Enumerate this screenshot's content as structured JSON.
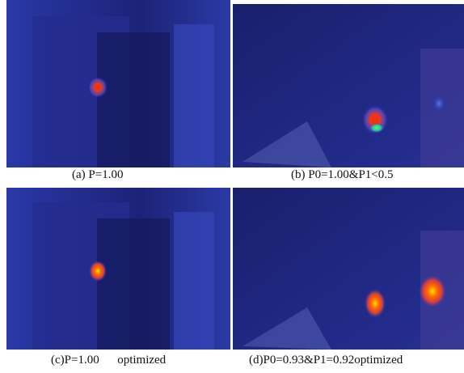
{
  "figure": {
    "panels": [
      {
        "caption": "(a) P=1.00"
      },
      {
        "caption": "(b) P0=1.00&P1<0.5"
      },
      {
        "caption": "(c)P=1.00      optimized"
      },
      {
        "caption": "(d)P0=0.93&P1=0.92optimized"
      }
    ]
  }
}
